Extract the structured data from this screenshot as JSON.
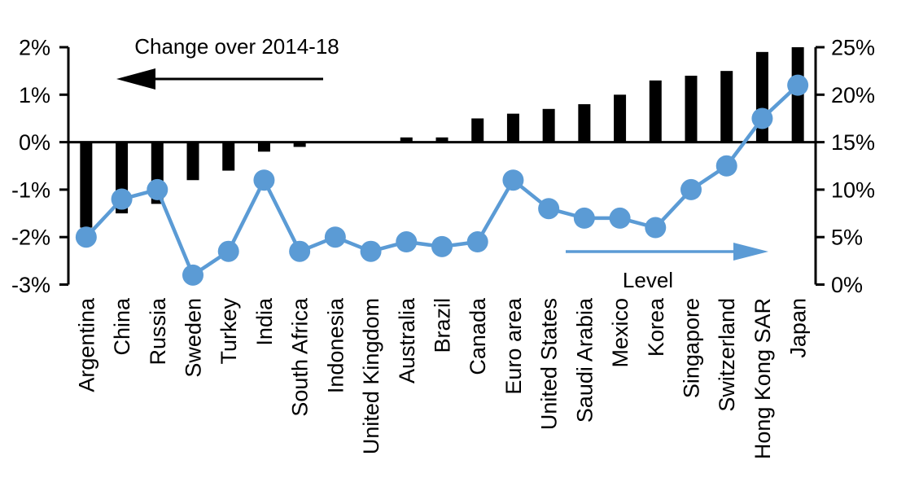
{
  "chart_data": {
    "type": "bar",
    "subtype": "bar-line-combo-dual-axis",
    "categories": [
      "Argentina",
      "China",
      "Russia",
      "Sweden",
      "Turkey",
      "India",
      "South Africa",
      "Indonesia",
      "United Kingdom",
      "Australia",
      "Brazil",
      "Canada",
      "Euro area",
      "United States",
      "Saudi Arabia",
      "Mexico",
      "Korea",
      "Singapore",
      "Switzerland",
      "Hong Kong SAR",
      "Japan"
    ],
    "series": [
      {
        "name": "Change over 2014-18",
        "type": "bar",
        "axis": "left",
        "color": "#000000",
        "values": [
          -1.8,
          -1.5,
          -1.3,
          -0.8,
          -0.6,
          -0.2,
          -0.1,
          0,
          0,
          0.1,
          0.1,
          0.5,
          0.6,
          0.7,
          0.8,
          1.0,
          1.3,
          1.4,
          1.5,
          1.9,
          2.0
        ]
      },
      {
        "name": "Level",
        "type": "line",
        "axis": "right",
        "color": "#5B9BD5",
        "values": [
          5,
          9,
          10,
          1,
          3.5,
          11,
          3.5,
          5,
          3.5,
          4.5,
          4,
          4.5,
          11,
          8,
          7,
          7,
          6,
          10,
          12.5,
          17.5,
          21
        ]
      }
    ],
    "left_axis": {
      "tick_labels": [
        "2%",
        "1%",
        "0%",
        "-1%",
        "-2%",
        "-3%"
      ],
      "tick_values": [
        2,
        1,
        0,
        -1,
        -2,
        -3
      ],
      "min": -3,
      "max": 2
    },
    "right_axis": {
      "tick_labels": [
        "25%",
        "20%",
        "15%",
        "10%",
        "5%",
        "0%"
      ],
      "tick_values": [
        25,
        20,
        15,
        10,
        5,
        0
      ],
      "min": 0,
      "max": 25
    },
    "grid": false,
    "legend_position": "in-plot annotated arrows",
    "annotations": {
      "left_arrow_direction": "left",
      "right_arrow_direction": "right"
    }
  }
}
